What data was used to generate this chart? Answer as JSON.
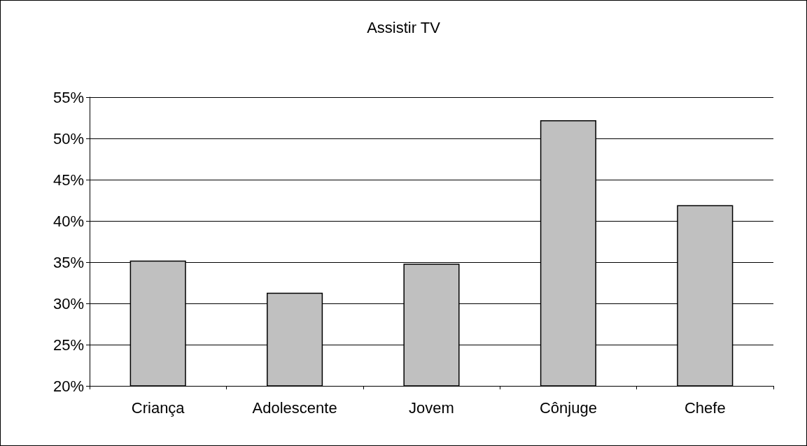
{
  "chart_data": {
    "type": "bar",
    "title": "Assistir TV",
    "categories": [
      "Criança",
      "Adolescente",
      "Jovem",
      "Cônjuge",
      "Chefe"
    ],
    "values": [
      35.2,
      31.3,
      34.8,
      52.2,
      41.9
    ],
    "color": "#c0c0c0",
    "ylim": [
      20,
      55
    ],
    "yticks": [
      {
        "value": 20,
        "label": "20%"
      },
      {
        "value": 25,
        "label": "25%"
      },
      {
        "value": 30,
        "label": "30%"
      },
      {
        "value": 35,
        "label": "35%"
      },
      {
        "value": 40,
        "label": "40%"
      },
      {
        "value": 45,
        "label": "45%"
      },
      {
        "value": 50,
        "label": "50%"
      },
      {
        "value": 55,
        "label": "55%"
      }
    ],
    "grid": "y"
  }
}
